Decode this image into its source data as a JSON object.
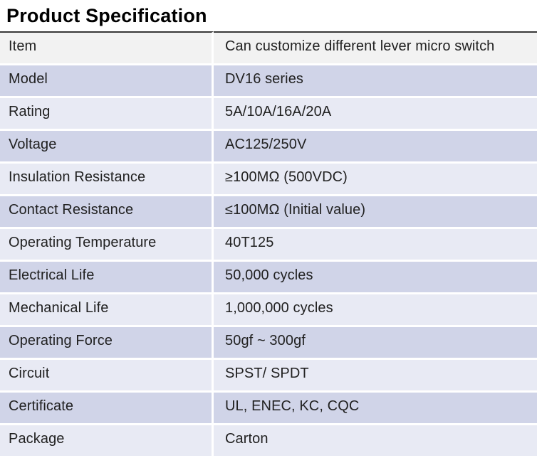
{
  "page": {
    "title": "Product Specification"
  },
  "spec_table": {
    "rows": [
      {
        "label": "Item",
        "value": "Can customize different lever micro switch"
      },
      {
        "label": "Model",
        "value": "DV16 series"
      },
      {
        "label": "Rating",
        "value": "5A/10A/16A/20A"
      },
      {
        "label": "Voltage",
        "value": "AC125/250V"
      },
      {
        "label": "Insulation Resistance",
        "value": "≥100MΩ (500VDC)"
      },
      {
        "label": "Contact Resistance",
        "value": "≤100MΩ (Initial value)"
      },
      {
        "label": "Operating Temperature",
        "value": "40T125"
      },
      {
        "label": "Electrical Life",
        "value": "50,000 cycles"
      },
      {
        "label": "Mechanical Life",
        "value": "1,000,000 cycles"
      },
      {
        "label": "Operating Force",
        "value": "50gf ~ 300gf"
      },
      {
        "label": "Circuit",
        "value": "SPST/ SPDT"
      },
      {
        "label": "Certificate",
        "value": "UL, ENEC, KC, CQC"
      },
      {
        "label": "Package",
        "value": "Carton"
      }
    ],
    "colors": {
      "header_row_bg": "#f2f2f2",
      "row_bg_medium": "#d0d4e8",
      "row_bg_light": "#e8eaf4",
      "row_separator": "#ffffff",
      "top_rule": "#383838",
      "text": "#212121",
      "title_text": "#000000"
    }
  }
}
